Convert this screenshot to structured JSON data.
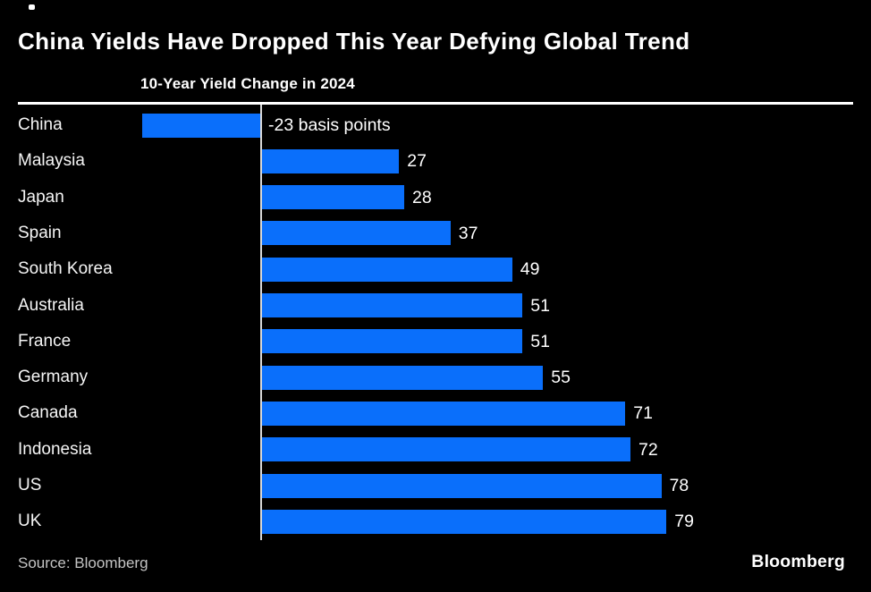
{
  "header": {
    "title": "China Yields Have Dropped This Year Defying Global Trend",
    "subtitle": "10-Year Yield Change in 2024"
  },
  "chart_data": {
    "type": "bar",
    "orientation": "horizontal",
    "title": "10-Year Yield Change in 2024",
    "unit": "basis points",
    "categories": [
      "China",
      "Malaysia",
      "Japan",
      "Spain",
      "South Korea",
      "Australia",
      "France",
      "Germany",
      "Canada",
      "Indonesia",
      "US",
      "UK"
    ],
    "values": [
      -23,
      27,
      28,
      37,
      49,
      51,
      51,
      55,
      71,
      72,
      78,
      79
    ],
    "value_labels": [
      "-23 basis points",
      "27",
      "28",
      "37",
      "49",
      "51",
      "51",
      "55",
      "71",
      "72",
      "78",
      "79"
    ],
    "xlabel": "",
    "ylabel": "",
    "xlim": [
      -23,
      79
    ],
    "baseline": 0,
    "grid": false,
    "legend": false
  },
  "footer": {
    "source": "Source: Bloomberg",
    "logo": "Bloomberg"
  },
  "colors": {
    "background": "#000000",
    "bar": "#0a6ffb",
    "title_text": "#ffffff",
    "category_text": "#f5f5f5",
    "value_text": "#ffffff",
    "source_text": "#c4c4c4",
    "rule": "#ffffff",
    "baseline_line": "#d8d8d8"
  }
}
